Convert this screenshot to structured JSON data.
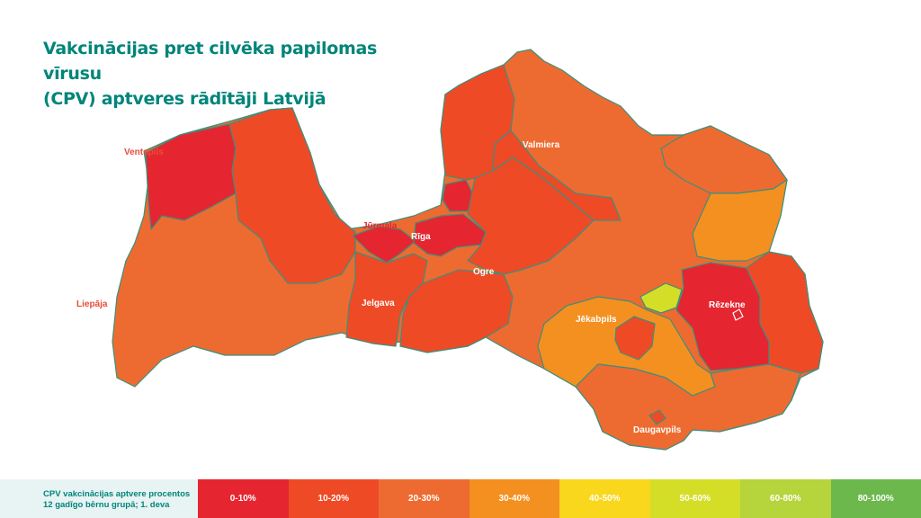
{
  "title": {
    "line1": "Vakcinācijas pret cilvēka papilomas vīrusu",
    "line2": "(CPV) aptveres rādītāji Latvijā"
  },
  "colors": {
    "accent": "#00857a",
    "c0_10": "#e52630",
    "c10_20": "#ef4a26",
    "c20_30": "#ed6b30",
    "c30_40": "#f39020",
    "c40_50": "#f9d71d",
    "c50_60": "#d5de26",
    "c60_80": "#b6d43b",
    "c80_100": "#6cb84d",
    "border": "#3d8f7d"
  },
  "map": {
    "cities": {
      "ventspils": "Ventspils",
      "liepaja": "Liepāja",
      "jurmala": "Jūrmala",
      "riga": "Rīga",
      "jelgava": "Jelgava",
      "ogre": "Ogre",
      "valmiera": "Valmiera",
      "jekabpils": "Jēkabpils",
      "rezekne": "Rēzekne",
      "daugavpils": "Daugavpils"
    }
  },
  "legend": {
    "caption_line1": "CPV vakcinācijas aptvere procentos",
    "caption_line2": "12 gadīgo bērnu grupā; 1. deva",
    "items": [
      {
        "label": "0-10%",
        "color": "#e52630"
      },
      {
        "label": "10-20%",
        "color": "#ef4a26"
      },
      {
        "label": "20-30%",
        "color": "#ed6b30"
      },
      {
        "label": "30-40%",
        "color": "#f39020"
      },
      {
        "label": "40-50%",
        "color": "#f9d71d"
      },
      {
        "label": "50-60%",
        "color": "#d5de26"
      },
      {
        "label": "60-80%",
        "color": "#b6d43b"
      },
      {
        "label": "80-100%",
        "color": "#6cb84d"
      }
    ]
  }
}
